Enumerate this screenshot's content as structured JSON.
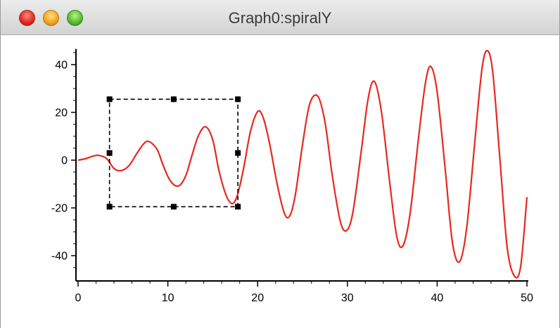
{
  "window": {
    "title": "Graph0:spiralY"
  },
  "chart_data": {
    "type": "line",
    "x_ticks": [
      0,
      10,
      20,
      30,
      40,
      50
    ],
    "y_ticks": [
      40,
      20,
      0,
      -20,
      -40
    ],
    "xlim": [
      0,
      50
    ],
    "ylim": [
      -50,
      46
    ],
    "grid": false,
    "series": [
      {
        "color": "#e8281e",
        "x": [
          0,
          0.8,
          1.6,
          2.3,
          3.2,
          4.0,
          4.8,
          5.7,
          6.5,
          7.3,
          7.9,
          8.8,
          9.5,
          10.3,
          11.2,
          12.0,
          12.7,
          13.4,
          14.2,
          15.0,
          15.7,
          16.5,
          17.2,
          17.8,
          18.5,
          19.2,
          20.0,
          20.6,
          21.3,
          22.2,
          23.0,
          23.6,
          24.2,
          25.0,
          25.8,
          26.7,
          27.5,
          28.3,
          29.2,
          29.9,
          30.6,
          31.5,
          32.3,
          33.0,
          33.8,
          34.7,
          35.5,
          36.2,
          37.0,
          37.9,
          38.7,
          39.3,
          40.0,
          40.9,
          41.7,
          42.5,
          43.3,
          44.2,
          45.0,
          45.6,
          46.2,
          47.0,
          47.8,
          48.6,
          49.3,
          50.0
        ],
        "y": [
          0,
          0.6,
          1.6,
          2.0,
          0.6,
          -3.5,
          -4.4,
          -2.2,
          2.5,
          6.8,
          7.8,
          4.5,
          -2.4,
          -8.8,
          -10.8,
          -6.5,
          2.2,
          10.2,
          14.0,
          8.5,
          -4.5,
          -14.8,
          -18.2,
          -14.0,
          -2.2,
          12.0,
          20.3,
          18.0,
          7.5,
          -10.5,
          -22.5,
          -23.2,
          -14.5,
          6.5,
          23.5,
          26.8,
          16.0,
          -6.0,
          -25.5,
          -29.5,
          -22.0,
          2.5,
          25.5,
          33.0,
          20.0,
          -9.0,
          -32.0,
          -35.8,
          -22.0,
          8.5,
          32.5,
          39.2,
          28.5,
          -4.0,
          -34.5,
          -42.5,
          -28.0,
          8.0,
          38.5,
          45.8,
          36.5,
          0.0,
          -36.5,
          -48.5,
          -44.5,
          -15.5
        ]
      }
    ],
    "selection_marquee": {
      "x_range": [
        3.5,
        17.8
      ],
      "y_range": [
        -19.5,
        25.5
      ]
    }
  }
}
